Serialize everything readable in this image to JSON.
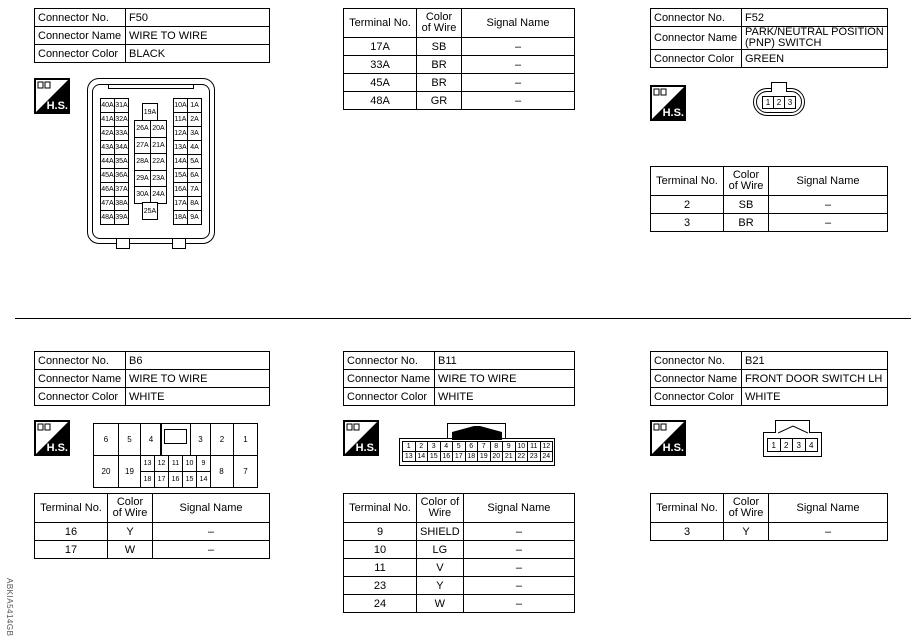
{
  "labels": {
    "connector_no": "Connector No.",
    "connector_name": "Connector Name",
    "connector_color": "Connector Color",
    "terminal_no": "Terminal No.",
    "color_of_wire": "Color of Wire",
    "signal_name": "Signal Name",
    "hs": "H.S."
  },
  "connectors": [
    {
      "no": "F50",
      "name": "WIRE TO WIRE",
      "color": "BLACK",
      "rows": [
        [
          "17A",
          "SB",
          "–"
        ],
        [
          "33A",
          "BR",
          "–"
        ],
        [
          "45A",
          "BR",
          "–"
        ],
        [
          "48A",
          "GR",
          "–"
        ]
      ],
      "pins": {
        "left": [
          [
            "40A",
            "31A"
          ],
          [
            "41A",
            "32A"
          ],
          [
            "42A",
            "33A"
          ],
          [
            "43A",
            "34A"
          ],
          [
            "44A",
            "35A"
          ],
          [
            "45A",
            "36A"
          ],
          [
            "46A",
            "37A"
          ],
          [
            "47A",
            "38A"
          ],
          [
            "48A",
            "39A"
          ]
        ],
        "mid_top": "19A",
        "mid": [
          [
            "26A",
            "20A"
          ],
          [
            "27A",
            "21A"
          ],
          [
            "28A",
            "22A"
          ],
          [
            "29A",
            "23A"
          ],
          [
            "30A",
            "24A"
          ]
        ],
        "mid_bottom": "25A",
        "right": [
          [
            "10A",
            "1A"
          ],
          [
            "11A",
            "2A"
          ],
          [
            "12A",
            "3A"
          ],
          [
            "13A",
            "4A"
          ],
          [
            "14A",
            "5A"
          ],
          [
            "15A",
            "6A"
          ],
          [
            "16A",
            "7A"
          ],
          [
            "17A",
            "8A"
          ],
          [
            "18A",
            "9A"
          ]
        ]
      }
    },
    {
      "no": "F52",
      "name": "PARK/NEUTRAL POSITION (PNP) SWITCH",
      "color": "GREEN",
      "rows": [
        [
          "2",
          "SB",
          "–"
        ],
        [
          "3",
          "BR",
          "–"
        ]
      ],
      "pins": [
        "1",
        "2",
        "3"
      ]
    },
    {
      "no": "B6",
      "name": "WIRE TO WIRE",
      "color": "WHITE",
      "rows": [
        [
          "16",
          "Y",
          "–"
        ],
        [
          "17",
          "W",
          "–"
        ]
      ],
      "pins": {
        "top": [
          "6",
          "5",
          "4",
          "3",
          "2",
          "1"
        ],
        "bottom_big": [
          "20",
          "19",
          "8",
          "7"
        ],
        "small_top": [
          "13",
          "12",
          "11",
          "10",
          "9"
        ],
        "small_bottom": [
          "18",
          "17",
          "16",
          "15",
          "14"
        ]
      }
    },
    {
      "no": "B11",
      "name": "WIRE TO WIRE",
      "color": "WHITE",
      "rows": [
        [
          "9",
          "SHIELD",
          "–"
        ],
        [
          "10",
          "LG",
          "–"
        ],
        [
          "11",
          "V",
          "–"
        ],
        [
          "23",
          "Y",
          "–"
        ],
        [
          "24",
          "W",
          "–"
        ]
      ],
      "pins": {
        "top": [
          "1",
          "2",
          "3",
          "4",
          "5",
          "6",
          "7",
          "8",
          "9",
          "10",
          "11",
          "12"
        ],
        "bottom": [
          "13",
          "14",
          "15",
          "16",
          "17",
          "18",
          "19",
          "20",
          "21",
          "22",
          "23",
          "24"
        ]
      }
    },
    {
      "no": "B21",
      "name": "FRONT DOOR SWITCH LH",
      "color": "WHITE",
      "rows": [
        [
          "3",
          "Y",
          "–"
        ]
      ],
      "pins": [
        "1",
        "2",
        "3",
        "4"
      ]
    }
  ],
  "figure_code": "ABKIA5414GB"
}
